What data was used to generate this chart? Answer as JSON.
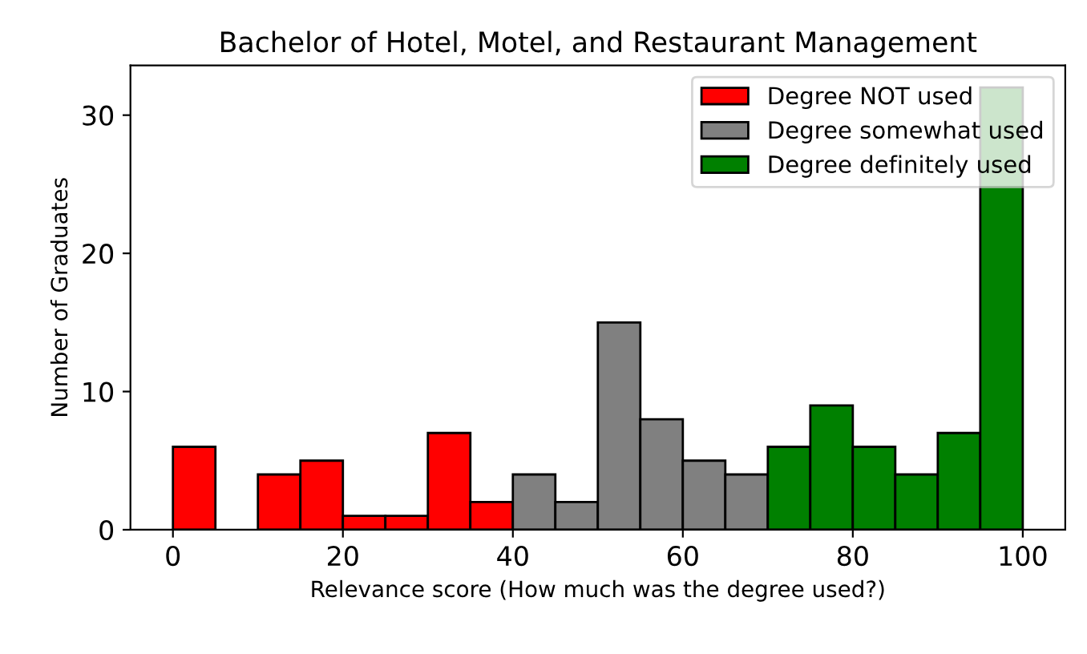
{
  "chart_data": {
    "type": "histogram",
    "title": "Bachelor of Hotel, Motel, and Restaurant Management",
    "xlabel": "Relevance score (How much was the degree used?)",
    "ylabel": "Number of Graduates",
    "bins": [
      0,
      5,
      10,
      15,
      20,
      25,
      30,
      35,
      40,
      45,
      50,
      55,
      60,
      65,
      70,
      75,
      80,
      85,
      90,
      95,
      100
    ],
    "series": [
      {
        "name": "Degree NOT used",
        "color": "#ff0000",
        "values": [
          6,
          0,
          4,
          5,
          1,
          1,
          7,
          2,
          null,
          null,
          null,
          null,
          null,
          null,
          null,
          null,
          null,
          null,
          null,
          null
        ]
      },
      {
        "name": "Degree somewhat used",
        "color": "#808080",
        "values": [
          null,
          null,
          null,
          null,
          null,
          null,
          null,
          null,
          4,
          2,
          15,
          8,
          5,
          4,
          null,
          null,
          null,
          null,
          null,
          null
        ]
      },
      {
        "name": "Degree definitely used",
        "color": "#008000",
        "values": [
          null,
          null,
          null,
          null,
          null,
          null,
          null,
          null,
          null,
          null,
          null,
          null,
          null,
          null,
          6,
          9,
          6,
          4,
          7,
          32
        ]
      }
    ],
    "xlim": [
      -5,
      105
    ],
    "ylim": [
      0,
      33.6
    ],
    "xticks": [
      0,
      20,
      40,
      60,
      80,
      100
    ],
    "yticks": [
      0,
      10,
      20,
      30
    ],
    "grid": false,
    "legend": "top right"
  }
}
